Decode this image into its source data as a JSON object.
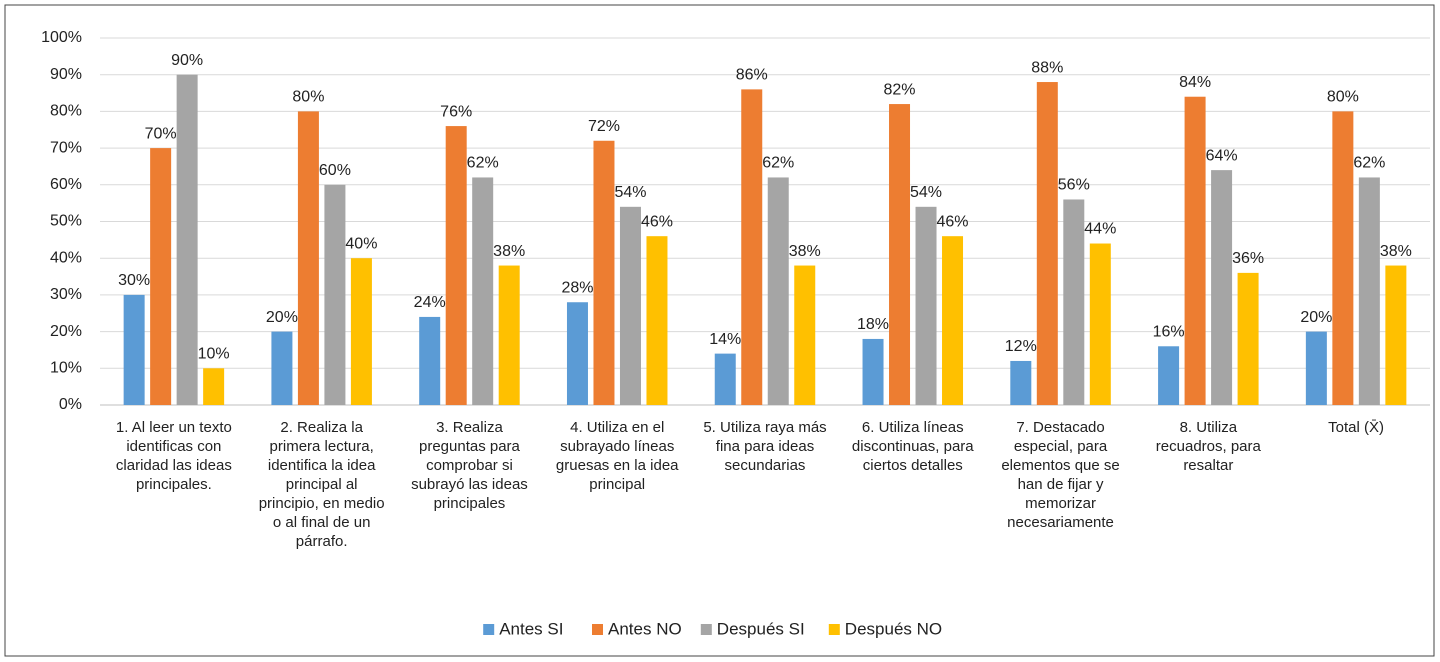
{
  "chart_data": {
    "type": "bar",
    "categories": [
      "1.    Al leer un texto identificas con claridad las ideas principales.",
      "2.    Realiza la primera lectura, identifica la idea principal al principio, en medio o al final de un párrafo.",
      "3.    Realiza preguntas para comprobar si subrayó las ideas principales",
      "4.    Utiliza en el subrayado líneas gruesas en la idea principal",
      "5.    Utiliza raya más fina para ideas secundarias",
      "6.    Utiliza líneas discontinuas, para ciertos detalles",
      "7.    Destacado especial, para elementos que se han de fijar y memorizar necesariamente",
      "8.    Utiliza recuadros, para resaltar",
      "Total (X̄)"
    ],
    "series": [
      {
        "name": "Antes SI",
        "color": "#5b9bd5",
        "values": [
          30,
          20,
          24,
          28,
          14,
          18,
          12,
          16,
          20
        ],
        "value_labels": [
          "30%",
          "20%",
          "24%",
          "28%",
          "14%",
          "18%",
          "12%",
          "16%",
          "20%"
        ]
      },
      {
        "name": "Antes NO",
        "color": "#ed7d31",
        "values": [
          70,
          80,
          76,
          72,
          86,
          82,
          88,
          84,
          80
        ],
        "value_labels": [
          "70%",
          "80%",
          "76%",
          "72%",
          "86%",
          "82%",
          "88%",
          "84%",
          "80%"
        ]
      },
      {
        "name": "Después SI",
        "color": "#a5a5a5",
        "values": [
          90,
          60,
          62,
          54,
          62,
          54,
          56,
          64,
          62
        ],
        "value_labels": [
          "90%",
          "60%",
          "62%",
          "54%",
          "62%",
          "54%",
          "56%",
          "64%",
          "62%"
        ]
      },
      {
        "name": "Después NO",
        "color": "#ffc000",
        "values": [
          10,
          40,
          38,
          46,
          38,
          46,
          44,
          36,
          38
        ],
        "value_labels": [
          "10%",
          "40%",
          "38%",
          "46%",
          "38%",
          "46%",
          "44%",
          "36%",
          "38%"
        ]
      }
    ],
    "ylim": [
      0,
      100
    ],
    "yticks": [
      {
        "value": 0,
        "label": "0%"
      },
      {
        "value": 10,
        "label": "10%"
      },
      {
        "value": 20,
        "label": "20%"
      },
      {
        "value": 30,
        "label": "30%"
      },
      {
        "value": 40,
        "label": "40%"
      },
      {
        "value": 50,
        "label": "50%"
      },
      {
        "value": 60,
        "label": "60%"
      },
      {
        "value": 70,
        "label": "70%"
      },
      {
        "value": 80,
        "label": "80%"
      },
      {
        "value": 90,
        "label": "90%"
      },
      {
        "value": 100,
        "label": "100%"
      }
    ],
    "grid": true,
    "legend": "bottom"
  }
}
